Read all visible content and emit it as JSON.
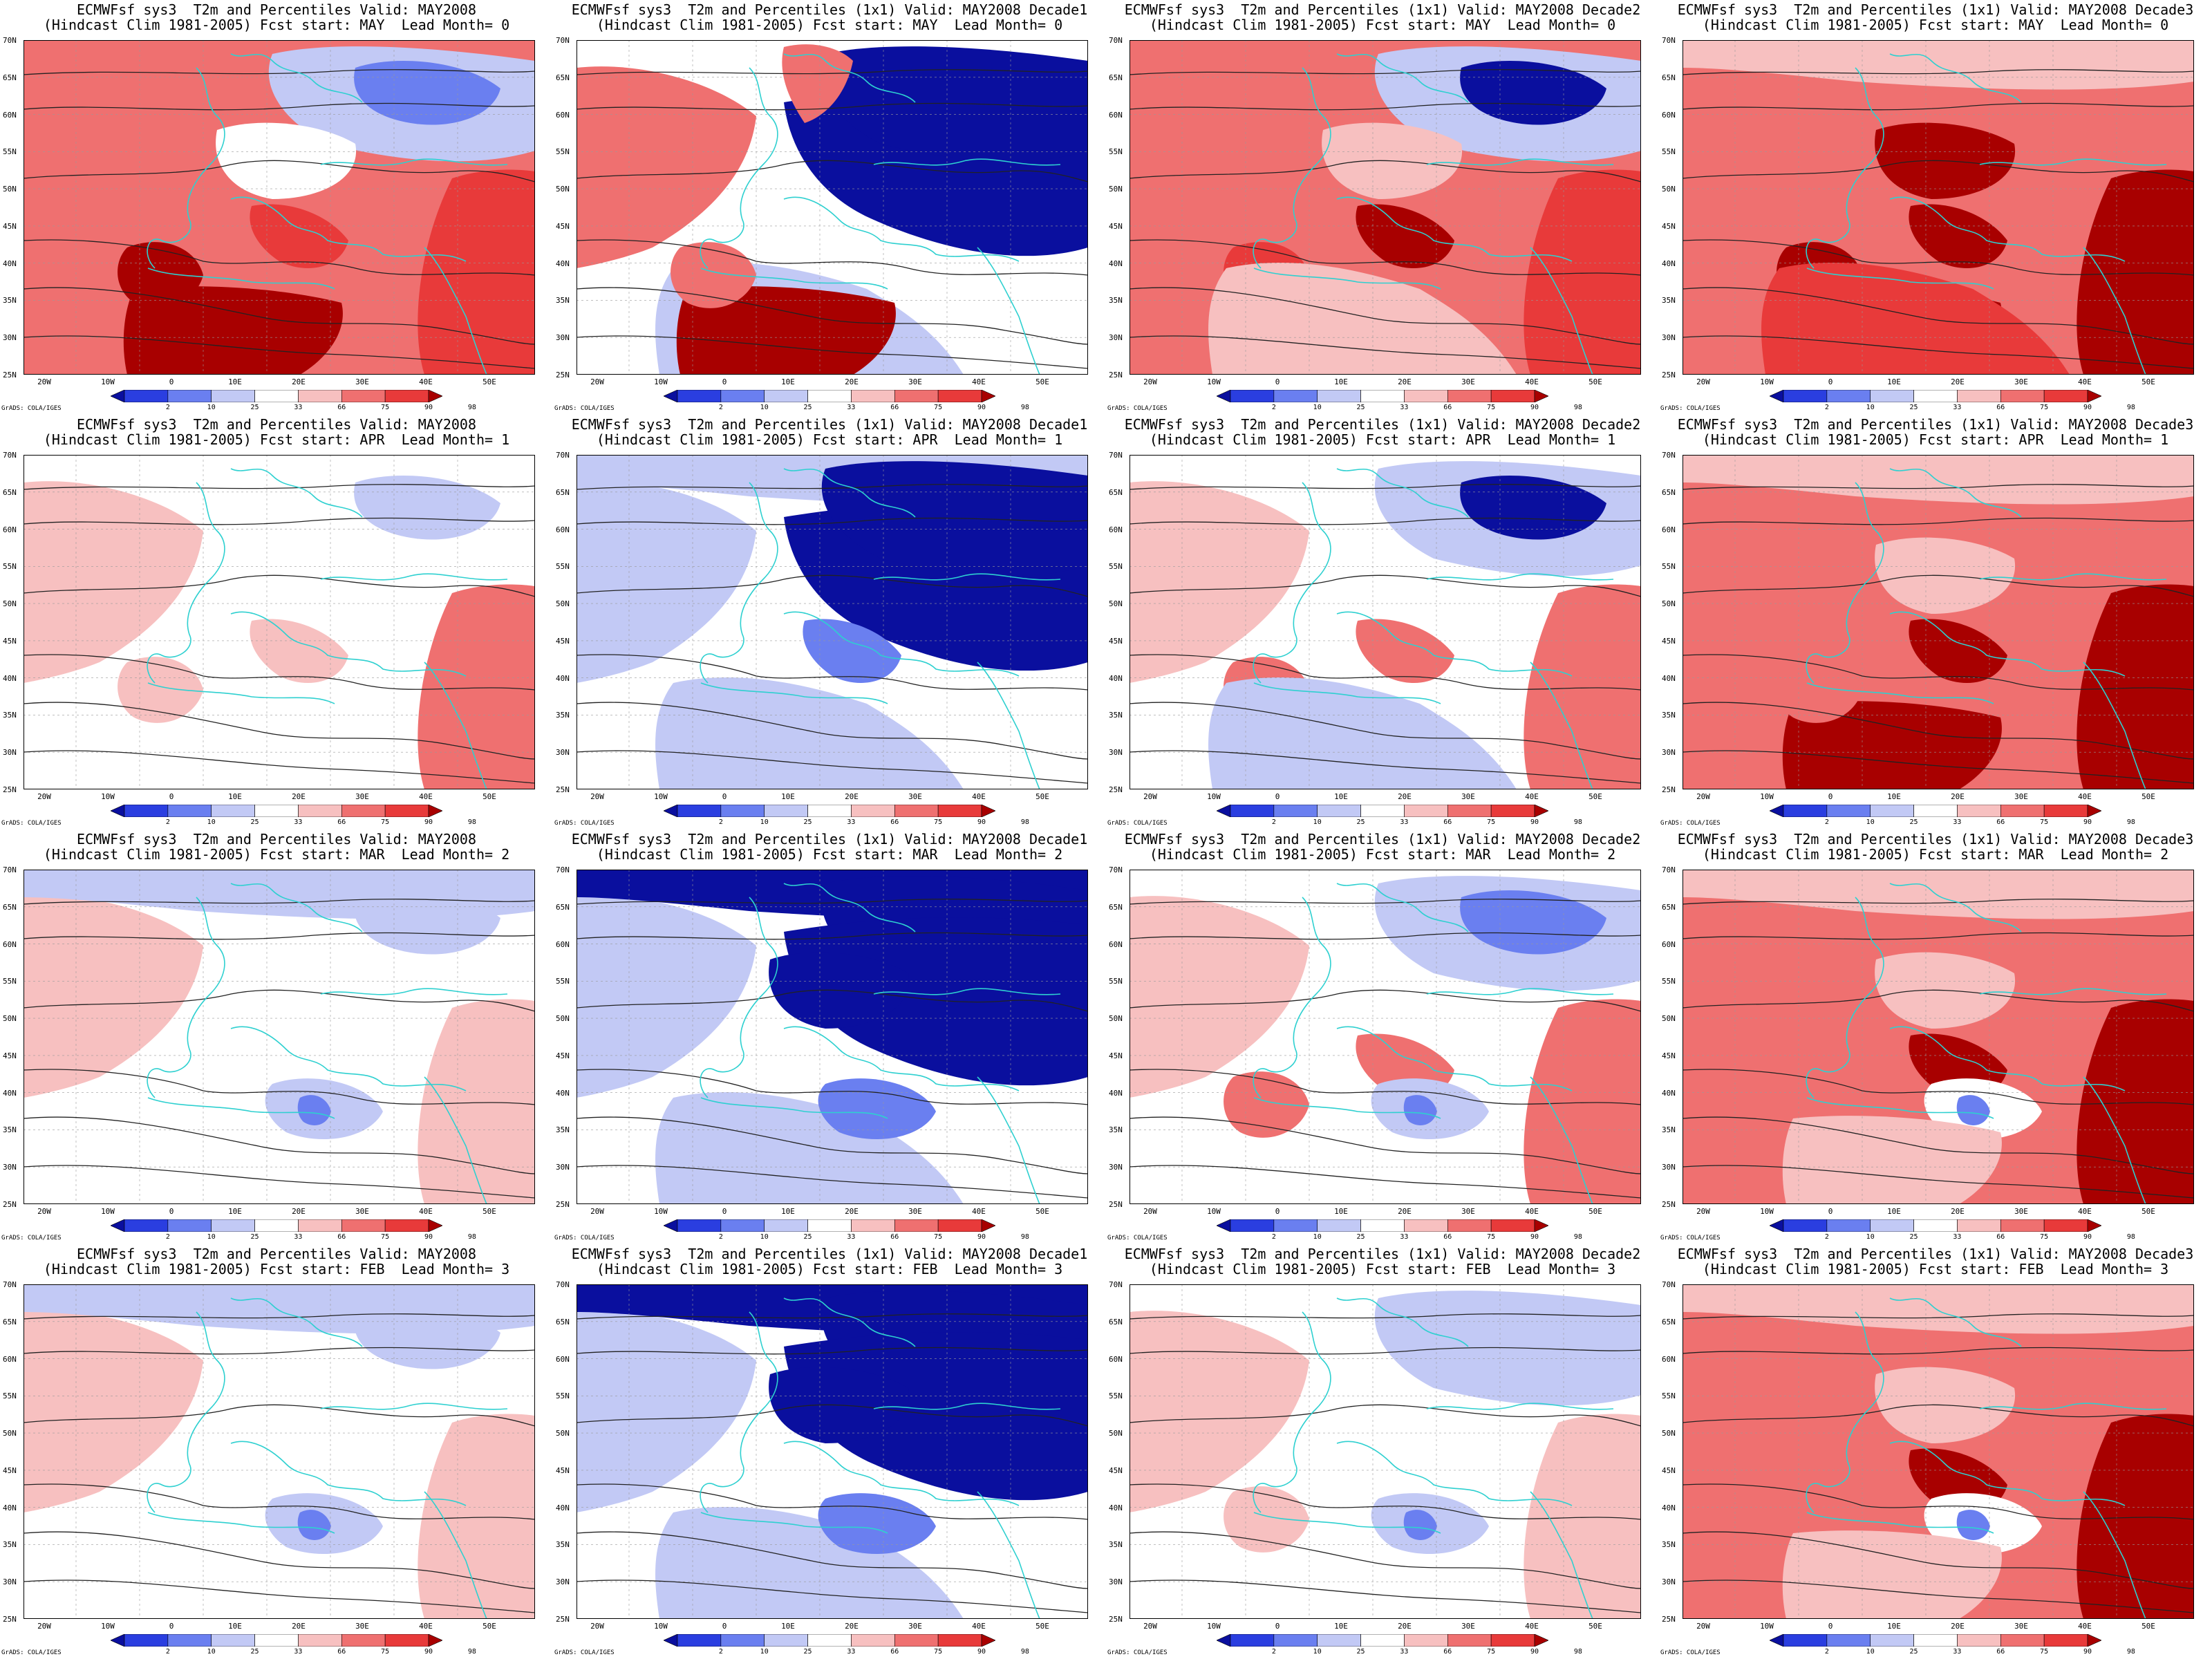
{
  "colors": {
    "deep_blue": "#0a0f9e",
    "blue": "#6a7ff0",
    "light_blue": "#c2c9f5",
    "white": "#ffffff",
    "light_red": "#f7c0c0",
    "red": "#ef7070",
    "mid_red": "#e83a3a",
    "dark_red": "#a80000",
    "coast": "#2ed0d0",
    "contour": "#222222"
  },
  "axes": {
    "lat_labels": [
      "70N",
      "65N",
      "60N",
      "55N",
      "50N",
      "45N",
      "40N",
      "35N",
      "30N",
      "25N"
    ],
    "lon_labels": [
      "20W",
      "10W",
      "0",
      "10E",
      "20E",
      "30E",
      "40E",
      "50E"
    ]
  },
  "colorbar": {
    "labels": [
      "2",
      "10",
      "25",
      "33",
      "66",
      "75",
      "90",
      "98"
    ],
    "colors": [
      "#0a0f9e",
      "#2a3ee0",
      "#6a7ff0",
      "#c2c9f5",
      "#ffffff",
      "#f7c0c0",
      "#ef7070",
      "#e83a3a",
      "#a80000"
    ]
  },
  "credit": "GrADS: COLA/IGES",
  "panels": [
    {
      "line1": "ECMWFsf sys3  T2m and Percentiles Valid: MAY2008",
      "line2": "(Hindcast Clim 1981-2005) Fcst start: MAY  Lead Month= 0",
      "scheme": "red_warm_north_blue"
    },
    {
      "line1": "ECMWFsf sys3  T2m and Percentiles (1x1) Valid: MAY2008 Decade1",
      "line2": "(Hindcast Clim 1981-2005) Fcst start: MAY  Lead Month= 0",
      "scheme": "blue_east_red_west"
    },
    {
      "line1": "ECMWFsf sys3  T2m and Percentiles (1x1) Valid: MAY2008 Decade2",
      "line2": "(Hindcast Clim 1981-2005) Fcst start: MAY  Lead Month= 0",
      "scheme": "red_with_blue_ne"
    },
    {
      "line1": "ECMWFsf sys3  T2m and Percentiles (1x1) Valid: MAY2008 Decade3",
      "line2": "(Hindcast Clim 1981-2005) Fcst start: MAY  Lead Month= 0",
      "scheme": "dark_red"
    },
    {
      "line1": "ECMWFsf sys3  T2m and Percentiles Valid: MAY2008",
      "line2": "(Hindcast Clim 1981-2005) Fcst start: APR  Lead Month= 1",
      "scheme": "mostly_white"
    },
    {
      "line1": "ECMWFsf sys3  T2m and Percentiles (1x1) Valid: MAY2008 Decade1",
      "line2": "(Hindcast Clim 1981-2005) Fcst start: APR  Lead Month= 1",
      "scheme": "deep_blue_ne"
    },
    {
      "line1": "ECMWFsf sys3  T2m and Percentiles (1x1) Valid: MAY2008 Decade2",
      "line2": "(Hindcast Clim 1981-2005) Fcst start: APR  Lead Month= 1",
      "scheme": "mixed_blue_ne"
    },
    {
      "line1": "ECMWFsf sys3  T2m and Percentiles (1x1) Valid: MAY2008 Decade3",
      "line2": "(Hindcast Clim 1981-2005) Fcst start: APR  Lead Month= 1",
      "scheme": "red_south_dark"
    },
    {
      "line1": "ECMWFsf sys3  T2m and Percentiles Valid: MAY2008",
      "line2": "(Hindcast Clim 1981-2005) Fcst start: MAR  Lead Month= 2",
      "scheme": "mostly_white_blue_spot"
    },
    {
      "line1": "ECMWFsf sys3  T2m and Percentiles (1x1) Valid: MAY2008 Decade1",
      "line2": "(Hindcast Clim 1981-2005) Fcst start: MAR  Lead Month= 2",
      "scheme": "deep_blue_north"
    },
    {
      "line1": "ECMWFsf sys3  T2m and Percentiles (1x1) Valid: MAY2008 Decade2",
      "line2": "(Hindcast Clim 1981-2005) Fcst start: MAR  Lead Month= 2",
      "scheme": "mixed_blue_ne_red_s"
    },
    {
      "line1": "ECMWFsf sys3  T2m and Percentiles (1x1) Valid: MAY2008 Decade3",
      "line2": "(Hindcast Clim 1981-2005) Fcst start: MAR  Lead Month= 2",
      "scheme": "red_dark_east"
    },
    {
      "line1": "ECMWFsf sys3  T2m and Percentiles Valid: MAY2008",
      "line2": "(Hindcast Clim 1981-2005) Fcst start: FEB  Lead Month= 3",
      "scheme": "mostly_white_blue_spot"
    },
    {
      "line1": "ECMWFsf sys3  T2m and Percentiles (1x1) Valid: MAY2008 Decade1",
      "line2": "(Hindcast Clim 1981-2005) Fcst start: FEB  Lead Month= 3",
      "scheme": "deep_blue_north"
    },
    {
      "line1": "ECMWFsf sys3  T2m and Percentiles (1x1) Valid: MAY2008 Decade2",
      "line2": "(Hindcast Clim 1981-2005) Fcst start: FEB  Lead Month= 3",
      "scheme": "light_mixed"
    },
    {
      "line1": "ECMWFsf sys3  T2m and Percentiles (1x1) Valid: MAY2008 Decade3",
      "line2": "(Hindcast Clim 1981-2005) Fcst start: FEB  Lead Month= 3",
      "scheme": "red_dark_east"
    }
  ]
}
